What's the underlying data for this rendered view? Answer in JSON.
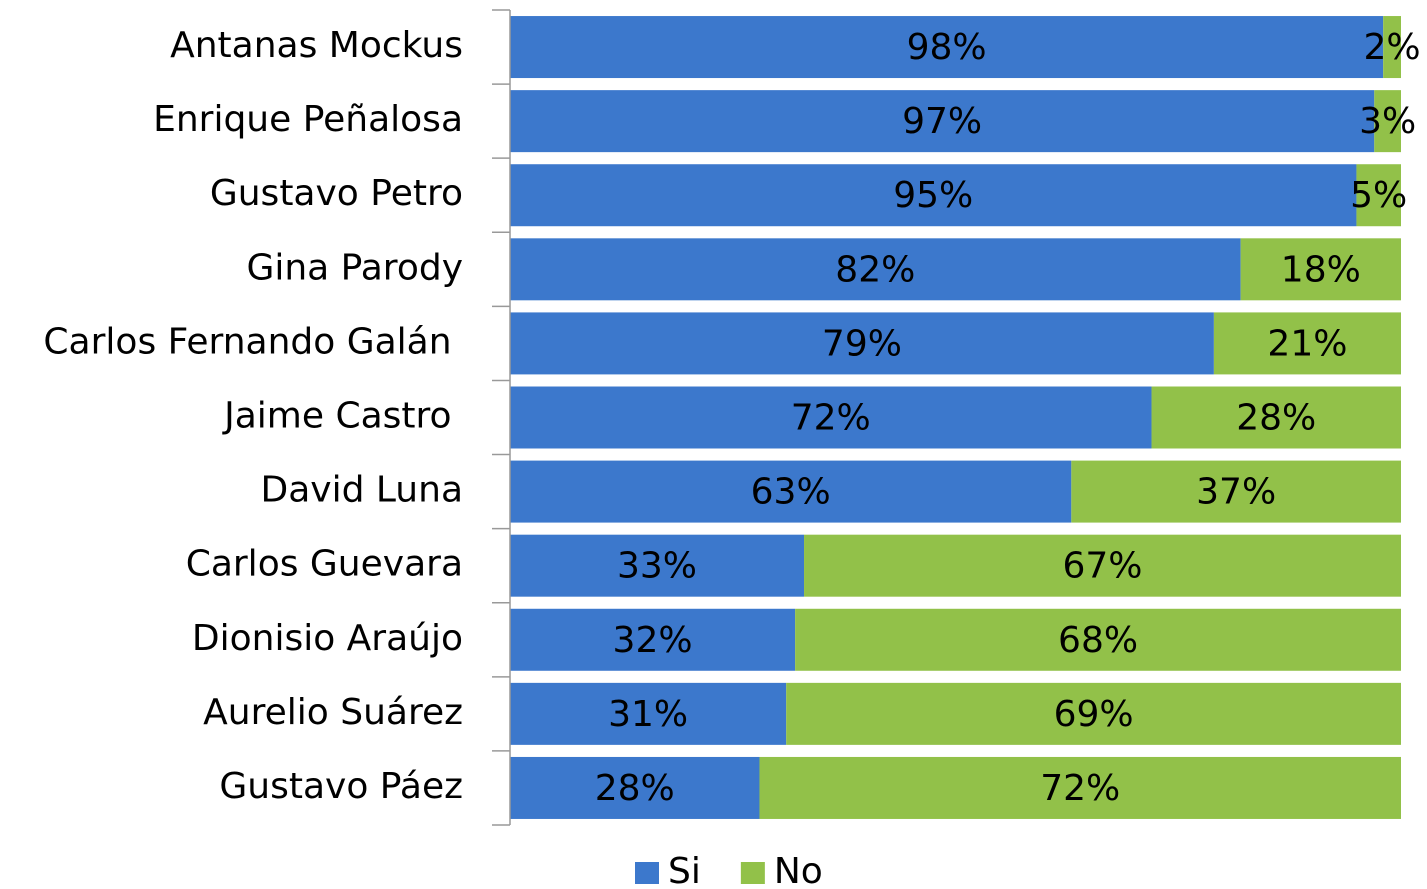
{
  "chart_data": {
    "type": "stacked-bar-horizontal",
    "categories": [
      "Antanas Mockus",
      "Enrique Peñalosa",
      "Gustavo Petro",
      "Gina Parody",
      "Carlos Fernando Galán ",
      "Jaime Castro ",
      "David Luna",
      "Carlos Guevara",
      "Dionisio Araújo",
      "Aurelio Suárez",
      "Gustavo Páez"
    ],
    "series": [
      {
        "name": "Si",
        "color": "#3c78cc",
        "values": [
          98,
          97,
          95,
          82,
          79,
          72,
          63,
          33,
          32,
          31,
          28
        ],
        "value_labels": [
          "98%",
          "97%",
          "95%",
          "82%",
          "79%",
          "72%",
          "63%",
          "33%",
          "32%",
          "31%",
          "28%"
        ]
      },
      {
        "name": "No",
        "color": "#92c149",
        "values": [
          2,
          3,
          5,
          18,
          21,
          28,
          37,
          67,
          68,
          69,
          72
        ],
        "value_labels": [
          "2%",
          "3%",
          "5%",
          "18%",
          "21%",
          "28%",
          "37%",
          "67%",
          "68%",
          "69%",
          "72%"
        ]
      }
    ],
    "xlim": [
      0,
      100
    ],
    "legend": "bottom"
  }
}
